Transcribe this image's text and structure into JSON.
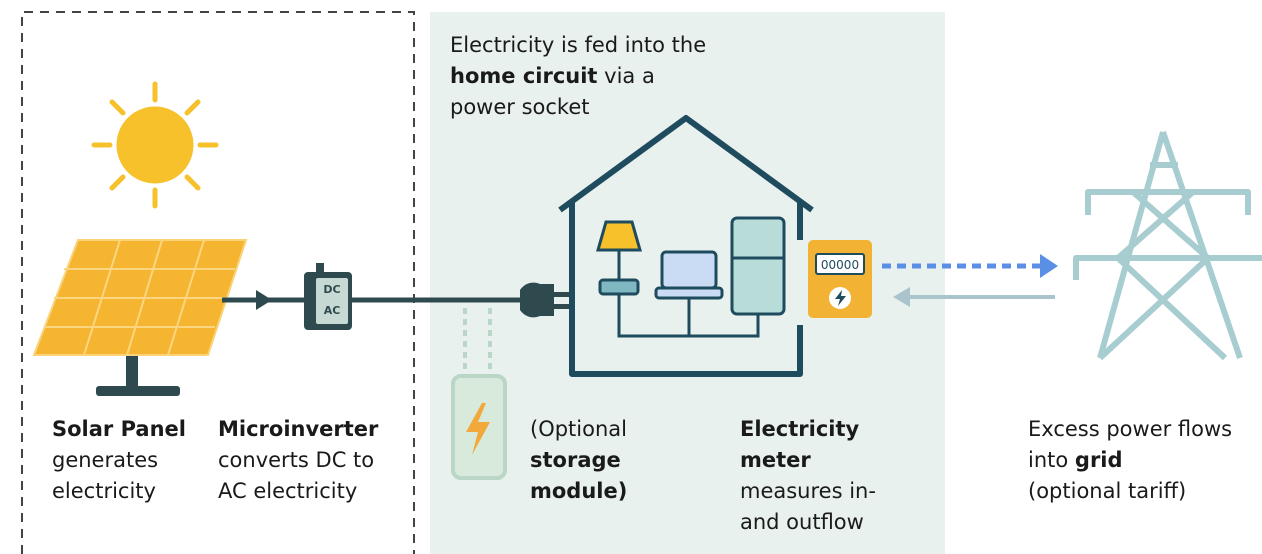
{
  "home_note": {
    "before": "Electricity is fed into the",
    "bold": "home circuit",
    "after": "via a power socket"
  },
  "solar_panel": {
    "bold": "Solar Panel",
    "text": "generates electricity"
  },
  "microinverter": {
    "bold": "Microinverter",
    "text": "converts DC to AC electricity",
    "display": [
      "DC",
      "AC"
    ]
  },
  "storage": {
    "before": "(Optional",
    "bold": "storage module)"
  },
  "meter": {
    "bold": "Electricity meter",
    "text": "measures in- and outflow",
    "display": "00000"
  },
  "grid": {
    "before": "Excess power flows into",
    "bold": "grid",
    "after": "(optional tariff)"
  }
}
